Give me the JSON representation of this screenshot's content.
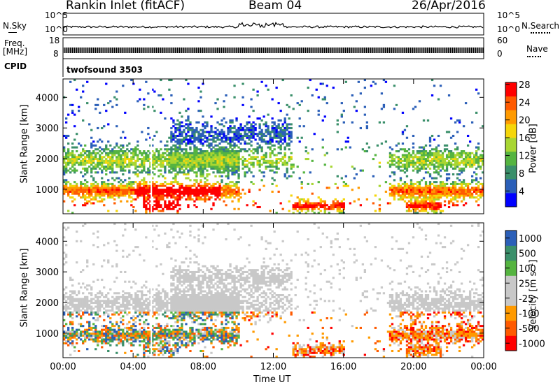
{
  "header": {
    "station": "Rankin Inlet (fitACF)",
    "beam": "Beam 04",
    "date": "26/Apr/2016"
  },
  "strip": {
    "nsky_label": "N.Sky",
    "nsky_ticks": [
      "10^5",
      "10^0"
    ],
    "nsearch_label": "N.Search",
    "nsearch_ticks": [
      "10^5",
      "10^0"
    ],
    "freq_label_1": "Freq.",
    "freq_label_2": "[MHz]",
    "freq_ticks": [
      "18",
      "8"
    ],
    "nave_label": "Nave",
    "nave_ticks": [
      "60",
      "0"
    ],
    "cpid_label": "CPID",
    "cpid_value": "twofsound 3503"
  },
  "colors": {
    "power": [
      "#0000ff",
      "#2b5fb8",
      "#3a8f6a",
      "#55b440",
      "#a8d632",
      "#f5d60a",
      "#ff9a00",
      "#ff5a00",
      "#ff0000"
    ],
    "velocity": [
      "#ff0000",
      "#ff5a00",
      "#ff9a00",
      "#c8c8c8",
      "#c8c8c8",
      "#55b440",
      "#3a8f6a",
      "#2b5fb8"
    ]
  },
  "chart_data": [
    {
      "type": "heatmap",
      "quantity": "Power",
      "ylabel": "Slant Range [km]",
      "y_ticks": [
        1000,
        2000,
        3000,
        4000
      ],
      "ylim": [
        200,
        4600
      ],
      "x_ticks": [
        "00:00",
        "04:00",
        "08:00",
        "12:00",
        "16:00",
        "20:00",
        "00:00"
      ],
      "colorbar_label": "Power [dB]",
      "colorbar_ticks": [
        4,
        8,
        12,
        16,
        20,
        24,
        28
      ]
    },
    {
      "type": "heatmap",
      "quantity": "Velocity",
      "ylabel": "Slant Range [km]",
      "y_ticks": [
        1000,
        2000,
        3000,
        4000
      ],
      "ylim": [
        200,
        4600
      ],
      "x_ticks": [
        "00:00",
        "04:00",
        "08:00",
        "12:00",
        "16:00",
        "20:00",
        "00:00"
      ],
      "xlabel": "Time UT",
      "colorbar_label": "Velocity [m s⁻¹]",
      "colorbar_ticks": [
        1000,
        500,
        100,
        25,
        -25,
        -100,
        -500,
        -1000
      ]
    }
  ]
}
